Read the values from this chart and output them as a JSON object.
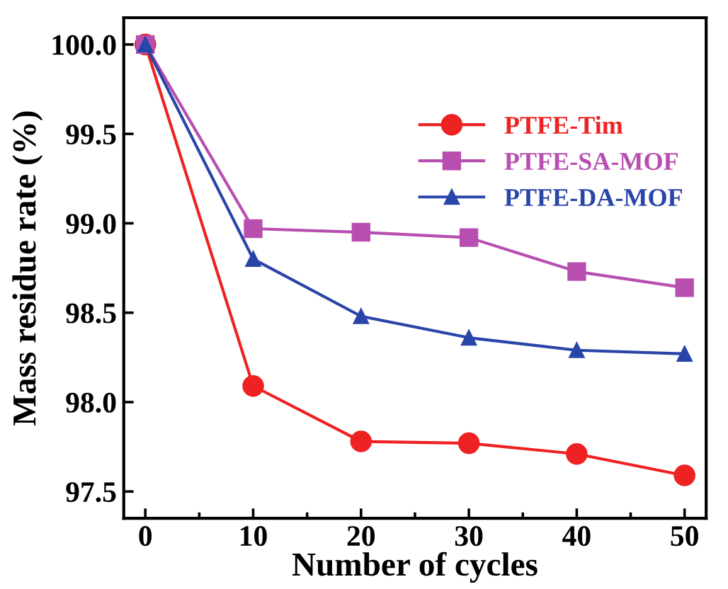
{
  "chart_data": {
    "type": "line",
    "xlabel": "Number of cycles",
    "ylabel": "Mass residue rate (%)",
    "x": [
      0,
      10,
      20,
      30,
      40,
      50
    ],
    "series": [
      {
        "name": "PTFE-Tim",
        "color": "#ee2222",
        "marker": "circle",
        "values": [
          100.0,
          98.09,
          97.78,
          97.77,
          97.71,
          97.59
        ]
      },
      {
        "name": "PTFE-SA-MOF",
        "color": "#b84fb0",
        "marker": "square",
        "values": [
          100.0,
          98.97,
          98.95,
          98.92,
          98.73,
          98.64
        ]
      },
      {
        "name": "PTFE-DA-MOF",
        "color": "#2a45a8",
        "marker": "triangle",
        "values": [
          100.0,
          98.8,
          98.48,
          98.36,
          98.29,
          98.27
        ]
      }
    ],
    "xlim": [
      -2,
      52
    ],
    "ylim": [
      97.35,
      100.15
    ],
    "xticks": [
      0,
      10,
      20,
      30,
      40,
      50
    ],
    "yticks": [
      {
        "value": 97.5,
        "label": "97.5"
      },
      {
        "value": 98.0,
        "label": "98.0"
      },
      {
        "value": 98.5,
        "label": "98.5"
      },
      {
        "value": 99.0,
        "label": "99.0"
      },
      {
        "value": 99.5,
        "label": "99.5"
      },
      {
        "value": 100.0,
        "label": "100.0"
      }
    ],
    "grid": false,
    "legend": "top right",
    "line_style": "solid"
  }
}
